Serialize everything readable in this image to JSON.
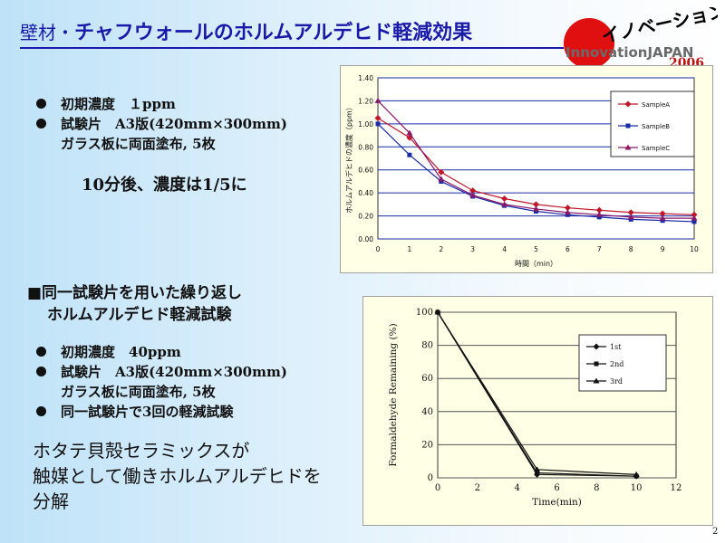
{
  "title": {
    "prefix": "壁材・",
    "main": "チャフウォールのホルムアルデヒド軽減効果"
  },
  "logo": {
    "text": "InnovationJAPAN",
    "year": "2006",
    "kana": "イノベーション",
    "accent_color": "#e01010"
  },
  "block1": {
    "bullets": [
      "初期濃度　１ppm",
      "試験片　A3版(420mm×300mm)"
    ],
    "continuation": "ガラス板に両面塗布, 5枚",
    "result": "10分後、濃度は1/5に"
  },
  "block2": {
    "heading_line1": "■同一試験片を用いた繰り返し",
    "heading_line2": "ホルムアルデヒド軽減試験",
    "bullets": [
      "初期濃度　40ppm",
      "試験片　A3版(420mm×300mm)"
    ],
    "continuation": "ガラス板に両面塗布, 5枚",
    "bullet3": "同一試験片で3回の軽減試験"
  },
  "conclusion": [
    "ホタテ貝殻セラミックスが",
    "触媒として働きホルムアルデヒドを",
    "分解"
  ],
  "page_number": "2",
  "chart_data": [
    {
      "type": "line",
      "xlabel": "時間（min）",
      "ylabel": "ホルムアルデヒドの濃度（ppm）",
      "xlim": [
        0,
        10
      ],
      "ylim": [
        0,
        1.4
      ],
      "x_ticks": [
        "0",
        "1",
        "2",
        "3",
        "4",
        "5",
        "6",
        "7",
        "8",
        "9",
        "10"
      ],
      "y_ticks": [
        "0.00",
        "0.20",
        "0.40",
        "0.60",
        "0.80",
        "1.00",
        "1.20",
        "1.40"
      ],
      "grid": true,
      "legend": "top-right",
      "x": [
        0,
        1,
        2,
        3,
        4,
        5,
        6,
        7,
        8,
        9,
        10
      ],
      "series": [
        {
          "name": "SampleA",
          "color": "#c0182a",
          "marker": "diamond",
          "values": [
            1.05,
            0.88,
            0.58,
            0.42,
            0.35,
            0.3,
            0.27,
            0.25,
            0.23,
            0.22,
            0.21
          ]
        },
        {
          "name": "SampleB",
          "color": "#1a2aa8",
          "marker": "square",
          "values": [
            1.0,
            0.73,
            0.5,
            0.37,
            0.29,
            0.24,
            0.21,
            0.19,
            0.17,
            0.16,
            0.15
          ]
        },
        {
          "name": "SampleC",
          "color": "#8a1a6a",
          "marker": "triangle",
          "values": [
            1.2,
            0.92,
            0.52,
            0.38,
            0.3,
            0.26,
            0.23,
            0.21,
            0.19,
            0.18,
            0.18
          ]
        }
      ]
    },
    {
      "type": "line",
      "xlabel": "Time(min)",
      "ylabel": "Formaldehyde Remaining (%)",
      "xlim": [
        0,
        12
      ],
      "ylim": [
        0,
        100
      ],
      "x_ticks": [
        "0",
        "2",
        "4",
        "6",
        "8",
        "10",
        "12"
      ],
      "y_ticks": [
        "0",
        "20",
        "40",
        "60",
        "80",
        "100"
      ],
      "grid": true,
      "legend": "top-right",
      "series": [
        {
          "name": "1st",
          "marker": "diamond",
          "x": [
            0,
            5,
            10
          ],
          "values": [
            100,
            2,
            1
          ]
        },
        {
          "name": "2nd",
          "marker": "square",
          "x": [
            0,
            5,
            10
          ],
          "values": [
            100,
            3,
            1
          ]
        },
        {
          "name": "3rd",
          "marker": "triangle",
          "x": [
            0,
            5,
            10
          ],
          "values": [
            100,
            5,
            2
          ]
        }
      ]
    }
  ]
}
